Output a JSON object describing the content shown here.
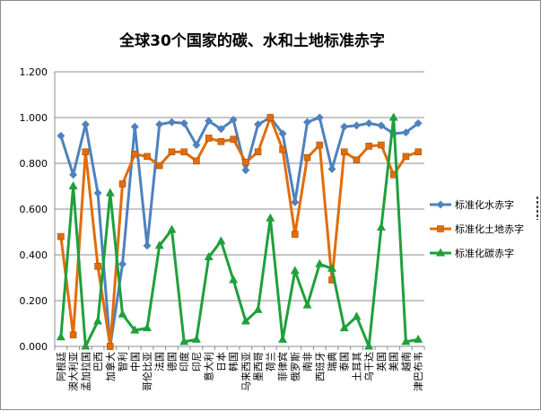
{
  "chart_data": {
    "type": "line",
    "title": "全球30个国家的碳、水和土地标准赤字",
    "xlabel": "",
    "ylabel": "",
    "ylim": [
      0,
      1.2
    ],
    "yticks": [
      "0.000",
      "0.200",
      "0.400",
      "0.600",
      "0.800",
      "1.000",
      "1.200"
    ],
    "grid": true,
    "legend_position": "right",
    "categories": [
      "阿根廷",
      "澳大利亚",
      "孟加拉国",
      "巴西",
      "加拿大",
      "智利",
      "中国",
      "哥伦比亚",
      "法国",
      "德国",
      "印度",
      "印尼",
      "意大利",
      "日本",
      "韩国",
      "马来西亚",
      "墨西哥",
      "荷兰",
      "菲律宾",
      "俄罗斯",
      "南非",
      "西班牙",
      "瑞典",
      "泰国",
      "土耳其",
      "乌干达",
      "英国",
      "美国",
      "越南",
      "津巴布韦"
    ],
    "series": [
      {
        "name": "标准化水赤字",
        "color": "#4f81bd",
        "marker": "diamond",
        "values": [
          0.92,
          0.75,
          0.97,
          0.67,
          0.0,
          0.36,
          0.96,
          0.44,
          0.97,
          0.98,
          0.975,
          0.88,
          0.985,
          0.95,
          0.99,
          0.77,
          0.97,
          1.0,
          0.93,
          0.63,
          0.98,
          1.0,
          0.775,
          0.96,
          0.965,
          0.975,
          0.965,
          0.93,
          0.935,
          0.975
        ]
      },
      {
        "name": "标准化土地赤字",
        "color": "#e36c09",
        "marker": "square",
        "values": [
          0.48,
          0.05,
          0.85,
          0.35,
          0.0,
          0.71,
          0.84,
          0.83,
          0.79,
          0.85,
          0.85,
          0.81,
          0.91,
          0.895,
          0.905,
          0.805,
          0.85,
          1.0,
          0.86,
          0.49,
          0.825,
          0.88,
          0.29,
          0.85,
          0.815,
          0.875,
          0.88,
          0.75,
          0.83,
          0.85
        ]
      },
      {
        "name": "标准化碳赤字",
        "color": "#1ea03c",
        "marker": "triangle",
        "values": [
          0.04,
          0.7,
          0.0,
          0.11,
          0.67,
          0.14,
          0.07,
          0.08,
          0.44,
          0.51,
          0.02,
          0.03,
          0.39,
          0.46,
          0.29,
          0.11,
          0.16,
          0.56,
          0.03,
          0.33,
          0.18,
          0.36,
          0.34,
          0.08,
          0.13,
          0.0,
          0.52,
          1.0,
          0.02,
          0.03
        ]
      }
    ]
  }
}
